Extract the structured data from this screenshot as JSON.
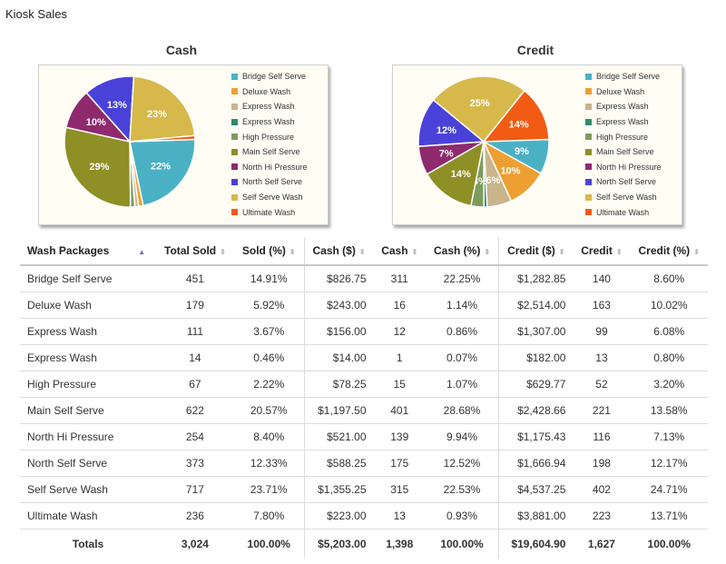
{
  "page_title": "Kiosk Sales",
  "chart_data": [
    {
      "type": "pie",
      "title": "Cash",
      "labels": [
        "Bridge Self Serve",
        "Deluxe Wash",
        "Express Wash",
        "Express Wash",
        "High Pressure",
        "Main Self Serve",
        "North Hi Pressure",
        "North Self Serve",
        "Self Serve Wash",
        "Ultimate Wash"
      ],
      "values": [
        22.25,
        1.14,
        0.86,
        0.07,
        1.07,
        28.68,
        9.94,
        12.52,
        22.53,
        0.93
      ],
      "colors": [
        "#4ab1c5",
        "#ee9f32",
        "#c9b48c",
        "#2f8a6a",
        "#7d9c5c",
        "#8e8f25",
        "#8f2a6e",
        "#4a42d8",
        "#d6b94a",
        "#f25b14"
      ],
      "slice_labels": [
        "22%",
        "",
        "",
        "",
        "",
        "29%",
        "10%",
        "13%",
        "23%",
        ""
      ],
      "legend_position": "right"
    },
    {
      "type": "pie",
      "title": "Credit",
      "labels": [
        "Bridge Self Serve",
        "Deluxe Wash",
        "Express Wash",
        "Express Wash",
        "High Pressure",
        "Main Self Serve",
        "North Hi Pressure",
        "North Self Serve",
        "Self Serve Wash",
        "Ultimate Wash"
      ],
      "values": [
        8.6,
        10.02,
        6.08,
        0.8,
        3.2,
        13.58,
        7.13,
        12.17,
        24.71,
        13.71
      ],
      "colors": [
        "#4ab1c5",
        "#ee9f32",
        "#c9b48c",
        "#2f8a6a",
        "#7d9c5c",
        "#8e8f25",
        "#8f2a6e",
        "#4a42d8",
        "#d6b94a",
        "#f25b14"
      ],
      "slice_labels": [
        "9%",
        "10%",
        "6%",
        "",
        "3%",
        "14%",
        "7%",
        "12%",
        "25%",
        "14%"
      ],
      "legend_position": "right"
    }
  ],
  "table": {
    "headers": [
      "Wash Packages",
      "Total Sold",
      "Sold (%)",
      "Cash ($)",
      "Cash",
      "Cash (%)",
      "Credit ($)",
      "Credit",
      "Credit (%)"
    ],
    "rows": [
      [
        "Bridge Self Serve",
        "451",
        "14.91%",
        "$826.75",
        "311",
        "22.25%",
        "$1,282.85",
        "140",
        "8.60%"
      ],
      [
        "Deluxe Wash",
        "179",
        "5.92%",
        "$243.00",
        "16",
        "1.14%",
        "$2,514.00",
        "163",
        "10.02%"
      ],
      [
        "Express Wash",
        "111",
        "3.67%",
        "$156.00",
        "12",
        "0.86%",
        "$1,307.00",
        "99",
        "6.08%"
      ],
      [
        "Express Wash",
        "14",
        "0.46%",
        "$14.00",
        "1",
        "0.07%",
        "$182.00",
        "13",
        "0.80%"
      ],
      [
        "High Pressure",
        "67",
        "2.22%",
        "$78.25",
        "15",
        "1.07%",
        "$629.77",
        "52",
        "3.20%"
      ],
      [
        "Main Self Serve",
        "622",
        "20.57%",
        "$1,197.50",
        "401",
        "28.68%",
        "$2,428.66",
        "221",
        "13.58%"
      ],
      [
        "North Hi Pressure",
        "254",
        "8.40%",
        "$521.00",
        "139",
        "9.94%",
        "$1,175.43",
        "116",
        "7.13%"
      ],
      [
        "North Self Serve",
        "373",
        "12.33%",
        "$588.25",
        "175",
        "12.52%",
        "$1,666.94",
        "198",
        "12.17%"
      ],
      [
        "Self Serve Wash",
        "717",
        "23.71%",
        "$1,355.25",
        "315",
        "22.53%",
        "$4,537.25",
        "402",
        "24.71%"
      ],
      [
        "Ultimate Wash",
        "236",
        "7.80%",
        "$223.00",
        "13",
        "0.93%",
        "$3,881.00",
        "223",
        "13.71%"
      ]
    ],
    "totals": [
      "Totals",
      "3,024",
      "100.00%",
      "$5,203.00",
      "1,398",
      "100.00%",
      "$19,604.90",
      "1,627",
      "100.00%"
    ],
    "sort_icons": {
      "active": "sort-asc-icon",
      "inactive": "sort-both-icon"
    }
  }
}
